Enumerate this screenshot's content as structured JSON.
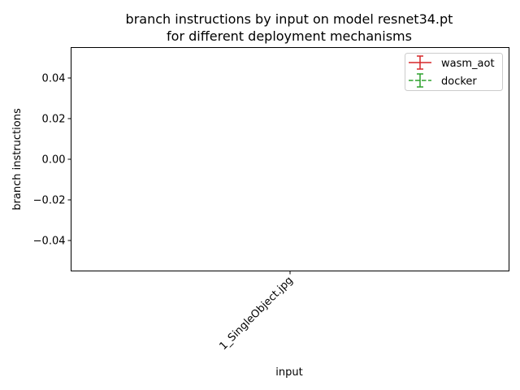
{
  "chart_data": {
    "type": "line",
    "title_line1": "branch instructions by input on model resnet34.pt",
    "title_line2": "for different deployment mechanisms",
    "xlabel": "input",
    "ylabel": "branch instructions",
    "categories": [
      "1_SingleObject.jpg"
    ],
    "ylim": [
      -0.055,
      0.055
    ],
    "yticks": [
      0.04,
      0.02,
      0.0,
      -0.02,
      -0.04
    ],
    "ytick_labels": [
      "0.04",
      "0.02",
      "0.00",
      "−0.02",
      "−0.04"
    ],
    "grid": false,
    "legend_position": "top-right",
    "series": [
      {
        "name": "wasm_aot",
        "color": "#d62728",
        "linestyle": "solid",
        "values": [
          null
        ],
        "errors": [
          null
        ]
      },
      {
        "name": "docker",
        "color": "#2ca02c",
        "linestyle": "dashed",
        "values": [
          null
        ],
        "errors": [
          null
        ]
      }
    ]
  }
}
